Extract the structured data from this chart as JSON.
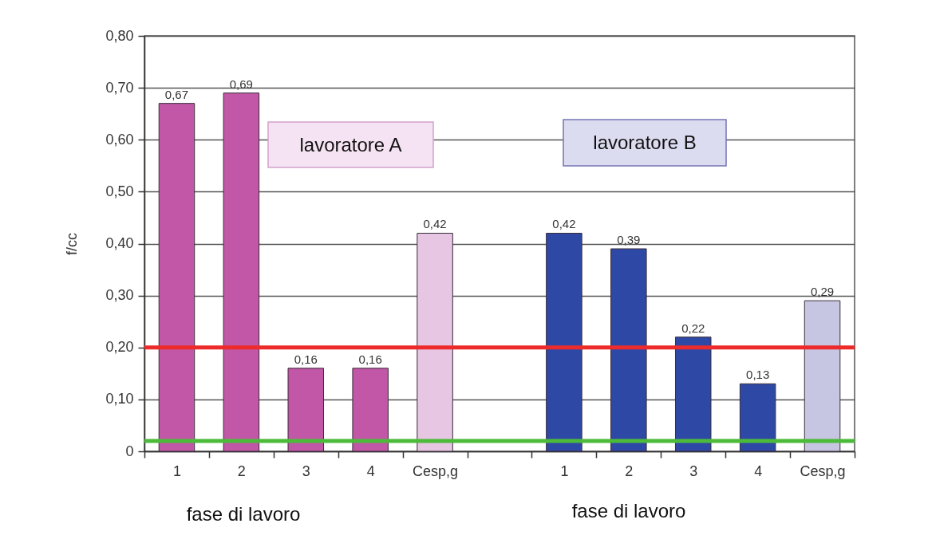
{
  "chart_data": {
    "type": "bar",
    "ylabel": "f/cc",
    "categories": [
      "1",
      "2",
      "3",
      "4",
      "Cesp,g",
      null,
      "1",
      "2",
      "3",
      "4",
      "Cesp,g"
    ],
    "values": [
      0.67,
      0.69,
      0.16,
      0.16,
      0.42,
      null,
      0.42,
      0.39,
      0.22,
      0.13,
      0.29
    ],
    "colors": [
      "#c157a6",
      "#c157a6",
      "#c157a6",
      "#c157a6",
      "#e6c6e2",
      null,
      "#2e48a6",
      "#2e48a6",
      "#2e48a6",
      "#2e48a6",
      "#c6c6e2"
    ],
    "value_labels": [
      "0,67",
      "0,69",
      "0,16",
      "0,16",
      "0,42",
      null,
      "0,42",
      "0,39",
      "0,22",
      "0,13",
      "0,29"
    ],
    "ylim": [
      0,
      0.8
    ],
    "yticks": [
      0,
      {
        "value": 0.1,
        "label": "0,10"
      },
      {
        "value": 0.2,
        "label": "0,20"
      },
      {
        "value": 0.3,
        "label": "0,30"
      },
      {
        "value": 0.4,
        "label": "0,40"
      },
      {
        "value": 0.5,
        "label": "0,50"
      },
      {
        "value": 0.6,
        "label": "0,60"
      },
      {
        "value": 0.7,
        "label": "0,70"
      },
      {
        "value": 0.8,
        "label": "0,80"
      }
    ],
    "grid": "y",
    "ref_lines": [
      {
        "axis": "y",
        "value": 0.2,
        "color": "#ee2b2b"
      },
      {
        "axis": "y",
        "value": 0.02,
        "color": "#4cbb3a"
      }
    ],
    "annotations": [
      "lavoratore A",
      "lavoratore B",
      "fase di lavoro",
      "fase di lavoro"
    ]
  }
}
